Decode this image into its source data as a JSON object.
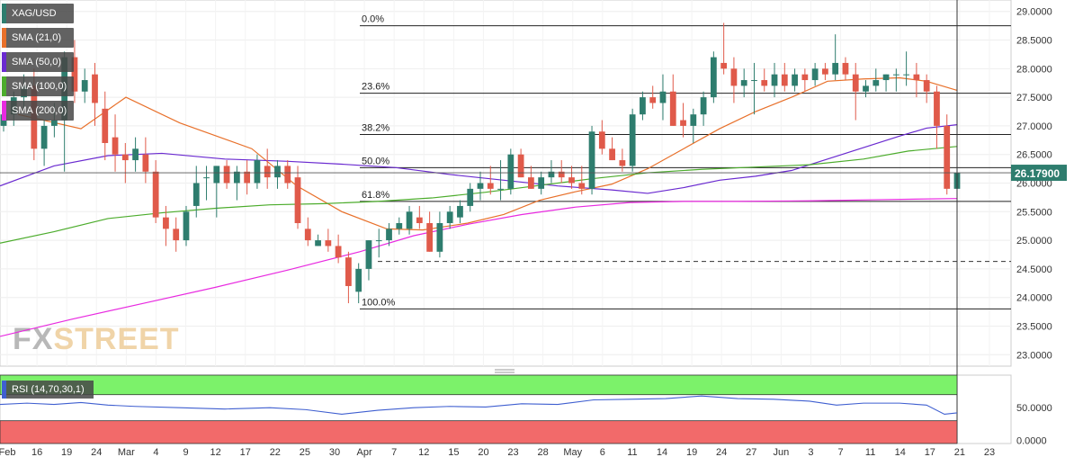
{
  "chart_data": [
    {
      "type": "candlestick",
      "symbol": "XAG/USD",
      "current_price": "26.17900",
      "ylim": [
        22.8,
        29.2
      ],
      "y_ticks": [
        "29.0000",
        "28.5000",
        "28.0000",
        "27.5000",
        "27.0000",
        "26.5000",
        "26.0000",
        "25.5000",
        "25.0000",
        "24.5000",
        "24.0000",
        "23.5000",
        "23.0000"
      ],
      "y_tick_values": [
        29.0,
        28.5,
        28.0,
        27.5,
        27.0,
        26.5,
        26.0,
        25.5,
        25.0,
        24.5,
        24.0,
        23.5,
        23.0
      ],
      "x_ticks": [
        "Feb",
        "16",
        "19",
        "24",
        "Mar",
        "4",
        "9",
        "12",
        "17",
        "22",
        "25",
        "30",
        "Apr",
        "7",
        "12",
        "15",
        "20",
        "23",
        "28",
        "May",
        "6",
        "11",
        "14",
        "19",
        "24",
        "27",
        "Jun",
        "3",
        "7",
        "11",
        "14",
        "17",
        "21",
        "23"
      ],
      "legend": [
        "XAG/USD",
        "SMA (21,0)",
        "SMA (50,0)",
        "SMA (100,0)",
        "SMA (200,0)"
      ],
      "fibonacci": [
        {
          "label": "0.0%",
          "value": 28.75
        },
        {
          "label": "23.6%",
          "value": 27.57
        },
        {
          "label": "38.2%",
          "value": 26.85
        },
        {
          "label": "50.0%",
          "value": 26.27
        },
        {
          "label": "61.8%",
          "value": 25.68
        },
        {
          "label": "100.0%",
          "value": 23.8
        }
      ],
      "support_dashed": 24.63,
      "candles": [
        [
          27.0,
          27.3,
          26.9,
          27.2
        ],
        [
          27.2,
          27.6,
          27.0,
          27.5
        ],
        [
          27.5,
          27.9,
          27.3,
          27.7
        ],
        [
          27.7,
          28.0,
          26.4,
          26.6
        ],
        [
          26.6,
          27.1,
          26.3,
          27.0
        ],
        [
          27.0,
          27.4,
          26.8,
          27.1
        ],
        [
          27.1,
          28.3,
          26.2,
          28.2
        ],
        [
          28.2,
          28.5,
          27.4,
          27.6
        ],
        [
          27.6,
          28.0,
          27.4,
          27.8
        ],
        [
          27.9,
          28.1,
          27.0,
          27.4
        ],
        [
          27.3,
          27.6,
          26.4,
          26.7
        ],
        [
          26.8,
          27.2,
          26.2,
          26.5
        ],
        [
          26.5,
          26.7,
          26.0,
          26.4
        ],
        [
          26.4,
          26.8,
          26.2,
          26.6
        ],
        [
          26.5,
          26.8,
          26.0,
          26.2
        ],
        [
          26.2,
          26.4,
          25.3,
          25.4
        ],
        [
          25.4,
          25.6,
          24.9,
          25.2
        ],
        [
          25.2,
          25.4,
          24.8,
          25.0
        ],
        [
          25.0,
          25.6,
          24.9,
          25.5
        ],
        [
          25.6,
          26.3,
          25.4,
          26.0
        ],
        [
          26.1,
          26.3,
          25.7,
          26.1
        ],
        [
          26.0,
          26.3,
          25.4,
          26.3
        ],
        [
          26.3,
          26.4,
          25.9,
          26.0
        ],
        [
          26.0,
          26.3,
          25.7,
          26.2
        ],
        [
          26.2,
          26.4,
          25.8,
          26.0
        ],
        [
          26.0,
          26.5,
          25.9,
          26.4
        ],
        [
          26.3,
          26.6,
          25.9,
          26.1
        ],
        [
          26.1,
          26.4,
          25.9,
          26.3
        ],
        [
          26.3,
          26.4,
          25.9,
          26.0
        ],
        [
          26.1,
          26.3,
          25.2,
          25.3
        ],
        [
          25.2,
          25.4,
          24.9,
          25.0
        ],
        [
          24.9,
          25.1,
          24.9,
          25.0
        ],
        [
          25.0,
          25.2,
          24.8,
          24.9
        ],
        [
          24.9,
          25.1,
          24.6,
          24.7
        ],
        [
          24.7,
          24.8,
          23.9,
          24.2
        ],
        [
          24.1,
          24.6,
          23.9,
          24.5
        ],
        [
          24.5,
          25.0,
          24.3,
          25.0
        ],
        [
          25.0,
          25.2,
          24.7,
          25.0
        ],
        [
          25.0,
          25.3,
          24.9,
          25.2
        ],
        [
          25.2,
          25.4,
          25.1,
          25.3
        ],
        [
          25.2,
          25.6,
          25.1,
          25.5
        ],
        [
          25.4,
          25.6,
          25.2,
          25.3
        ],
        [
          25.3,
          25.5,
          24.8,
          24.8
        ],
        [
          24.8,
          25.5,
          24.7,
          25.3
        ],
        [
          25.3,
          25.6,
          25.2,
          25.5
        ],
        [
          25.4,
          25.7,
          25.3,
          25.6
        ],
        [
          25.6,
          26.0,
          25.5,
          25.9
        ],
        [
          25.9,
          26.2,
          25.7,
          26.0
        ],
        [
          26.0,
          26.3,
          25.8,
          25.9
        ],
        [
          25.9,
          26.4,
          25.7,
          25.9
        ],
        [
          25.9,
          26.6,
          25.8,
          26.5
        ],
        [
          26.5,
          26.6,
          26.1,
          26.1
        ],
        [
          26.1,
          26.3,
          25.9,
          25.9
        ],
        [
          25.9,
          26.2,
          25.8,
          26.1
        ],
        [
          26.1,
          26.4,
          26.0,
          26.2
        ],
        [
          26.2,
          26.4,
          26.0,
          26.1
        ],
        [
          26.1,
          26.3,
          25.9,
          26.0
        ],
        [
          26.0,
          26.3,
          25.8,
          25.9
        ],
        [
          25.9,
          27.0,
          25.8,
          26.9
        ],
        [
          26.9,
          27.1,
          26.5,
          26.6
        ],
        [
          26.6,
          26.8,
          26.4,
          26.4
        ],
        [
          26.4,
          26.6,
          26.2,
          26.3
        ],
        [
          26.3,
          27.3,
          26.2,
          27.2
        ],
        [
          27.2,
          27.6,
          27.1,
          27.5
        ],
        [
          27.5,
          27.7,
          27.3,
          27.4
        ],
        [
          27.4,
          27.9,
          27.1,
          27.6
        ],
        [
          27.6,
          27.9,
          27.0,
          27.0
        ],
        [
          27.1,
          27.4,
          26.8,
          27.0
        ],
        [
          27.0,
          27.3,
          26.7,
          27.2
        ],
        [
          27.2,
          27.6,
          27.0,
          27.5
        ],
        [
          27.5,
          28.3,
          27.4,
          28.2
        ],
        [
          28.1,
          28.8,
          27.9,
          28.0
        ],
        [
          28.0,
          28.2,
          27.4,
          27.7
        ],
        [
          27.7,
          28.0,
          27.5,
          27.8
        ],
        [
          27.8,
          28.1,
          27.2,
          27.8
        ],
        [
          27.8,
          28.0,
          27.6,
          27.7
        ],
        [
          27.7,
          28.1,
          27.5,
          27.9
        ],
        [
          27.9,
          28.1,
          27.6,
          27.7
        ],
        [
          27.7,
          28.0,
          27.6,
          27.9
        ],
        [
          27.9,
          28.0,
          27.6,
          27.8
        ],
        [
          27.8,
          28.1,
          27.7,
          28.0
        ],
        [
          28.0,
          28.1,
          27.8,
          27.9
        ],
        [
          27.9,
          28.6,
          27.8,
          28.1
        ],
        [
          28.1,
          28.2,
          27.8,
          27.9
        ],
        [
          27.9,
          28.1,
          27.1,
          27.6
        ],
        [
          27.6,
          27.8,
          27.5,
          27.7
        ],
        [
          27.7,
          28.0,
          27.6,
          27.8
        ],
        [
          27.8,
          27.9,
          27.6,
          27.9
        ],
        [
          27.9,
          28.0,
          27.6,
          27.9
        ],
        [
          27.9,
          28.3,
          27.7,
          27.9
        ],
        [
          27.9,
          28.1,
          27.5,
          27.8
        ],
        [
          27.8,
          27.9,
          27.4,
          27.6
        ],
        [
          27.6,
          27.7,
          26.6,
          27.0
        ],
        [
          27.0,
          27.2,
          25.8,
          25.9
        ],
        [
          25.9,
          26.2,
          25.9,
          26.18
        ]
      ],
      "sma": [
        {
          "name": "SMA (21,0)",
          "color": "#e8702a",
          "points": [
            [
              20,
              27.2
            ],
            [
              90,
              26.95
            ],
            [
              140,
              27.5
            ],
            [
              200,
              27.05
            ],
            [
              280,
              26.6
            ],
            [
              330,
              25.95
            ],
            [
              380,
              25.5
            ],
            [
              430,
              25.2
            ],
            [
              470,
              25.18
            ],
            [
              520,
              25.3
            ],
            [
              560,
              25.45
            ],
            [
              600,
              25.7
            ],
            [
              640,
              25.85
            ],
            [
              680,
              25.98
            ],
            [
              720,
              26.25
            ],
            [
              760,
              26.6
            ],
            [
              800,
              26.95
            ],
            [
              840,
              27.25
            ],
            [
              880,
              27.5
            ],
            [
              920,
              27.78
            ],
            [
              960,
              27.82
            ],
            [
              1000,
              27.84
            ],
            [
              1030,
              27.78
            ],
            [
              1064,
              27.62
            ]
          ]
        },
        {
          "name": "SMA (50,0)",
          "color": "#6a2ad0",
          "points": [
            [
              0,
              25.95
            ],
            [
              60,
              26.3
            ],
            [
              120,
              26.48
            ],
            [
              180,
              26.52
            ],
            [
              250,
              26.42
            ],
            [
              320,
              26.38
            ],
            [
              380,
              26.33
            ],
            [
              440,
              26.27
            ],
            [
              500,
              26.15
            ],
            [
              560,
              26.05
            ],
            [
              620,
              25.95
            ],
            [
              680,
              25.88
            ],
            [
              720,
              25.82
            ],
            [
              760,
              25.92
            ],
            [
              800,
              26.05
            ],
            [
              840,
              26.12
            ],
            [
              880,
              26.22
            ],
            [
              920,
              26.42
            ],
            [
              960,
              26.62
            ],
            [
              1000,
              26.82
            ],
            [
              1030,
              26.96
            ],
            [
              1064,
              27.02
            ]
          ]
        },
        {
          "name": "SMA (100,0)",
          "color": "#4cac2c",
          "points": [
            [
              0,
              24.95
            ],
            [
              60,
              25.15
            ],
            [
              120,
              25.38
            ],
            [
              180,
              25.48
            ],
            [
              240,
              25.56
            ],
            [
              300,
              25.62
            ],
            [
              360,
              25.64
            ],
            [
              420,
              25.68
            ],
            [
              480,
              25.74
            ],
            [
              540,
              25.84
            ],
            [
              600,
              25.96
            ],
            [
              660,
              26.08
            ],
            [
              720,
              26.18
            ],
            [
              780,
              26.24
            ],
            [
              840,
              26.28
            ],
            [
              900,
              26.32
            ],
            [
              960,
              26.42
            ],
            [
              1010,
              26.56
            ],
            [
              1064,
              26.64
            ]
          ]
        },
        {
          "name": "SMA (200,0)",
          "color": "#e82ae0",
          "points": [
            [
              0,
              23.32
            ],
            [
              80,
              23.62
            ],
            [
              160,
              23.9
            ],
            [
              240,
              24.18
            ],
            [
              320,
              24.48
            ],
            [
              400,
              24.8
            ],
            [
              460,
              25.08
            ],
            [
              520,
              25.28
            ],
            [
              580,
              25.45
            ],
            [
              640,
              25.58
            ],
            [
              700,
              25.66
            ],
            [
              760,
              25.68
            ],
            [
              820,
              25.68
            ],
            [
              900,
              25.69
            ],
            [
              980,
              25.71
            ],
            [
              1064,
              25.73
            ]
          ]
        }
      ]
    },
    {
      "type": "line",
      "name": "RSI (14,70,30,1)",
      "y_ticks": [
        "50.0000",
        "0.0000"
      ],
      "y_tick_values": [
        50,
        0
      ],
      "ylim": [
        -5,
        100
      ],
      "overbought": 70,
      "oversold": 30,
      "points": [
        [
          0,
          55
        ],
        [
          30,
          57
        ],
        [
          60,
          55
        ],
        [
          90,
          58
        ],
        [
          120,
          54
        ],
        [
          150,
          52
        ],
        [
          200,
          50
        ],
        [
          250,
          48
        ],
        [
          300,
          50
        ],
        [
          340,
          47
        ],
        [
          380,
          40
        ],
        [
          420,
          46
        ],
        [
          460,
          50
        ],
        [
          500,
          52
        ],
        [
          540,
          51
        ],
        [
          580,
          56
        ],
        [
          620,
          55
        ],
        [
          660,
          62
        ],
        [
          700,
          63
        ],
        [
          740,
          64
        ],
        [
          780,
          68
        ],
        [
          820,
          64
        ],
        [
          860,
          63
        ],
        [
          900,
          60
        ],
        [
          930,
          54
        ],
        [
          960,
          57
        ],
        [
          1000,
          57
        ],
        [
          1030,
          54
        ],
        [
          1050,
          40
        ],
        [
          1064,
          42
        ]
      ]
    }
  ],
  "watermark": "FXSTREET"
}
